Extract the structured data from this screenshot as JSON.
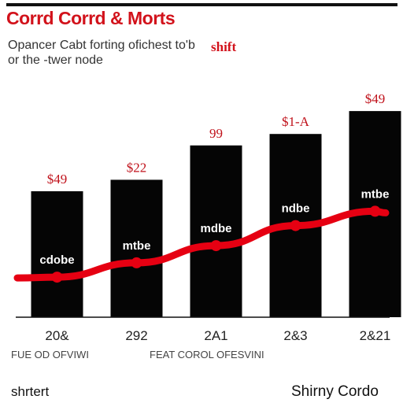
{
  "header": {
    "title": "Corrd Corrd & Morts",
    "subtitle": "Opancer Cabt forting ofichest to'b or the -twer node",
    "shift_label": "shift"
  },
  "chart_data": {
    "type": "bar",
    "categories": [
      "20&",
      "292",
      "2A1",
      "2&3",
      "2&21"
    ],
    "values": [
      44,
      48,
      60,
      64,
      72
    ],
    "value_labels": [
      "$49",
      "$22",
      "99",
      "$1-A",
      "$49"
    ],
    "bar_labels": [
      "cdobe",
      "mtbe",
      "mdbe",
      "ndbe",
      "mtbe"
    ],
    "line_values": [
      14,
      19,
      25,
      32,
      37
    ],
    "ylim": [
      0,
      80
    ],
    "grid": false,
    "colors": {
      "bars": "#050505",
      "line": "#e60012",
      "value_labels": "#c0121b",
      "bar_labels": "#ffffff"
    }
  },
  "footer": {
    "note_left": "FUE OD OFVIWI",
    "note_center": "FEAT COROL OFESVINI",
    "source_left": "shrtert",
    "source_right": "Shirny Cordo"
  }
}
